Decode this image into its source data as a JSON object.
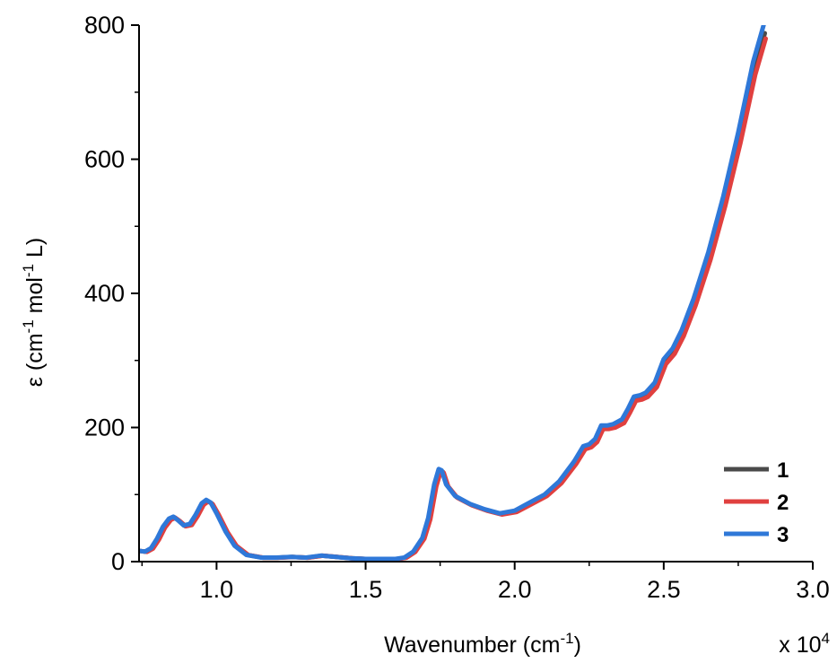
{
  "chart_data": {
    "type": "line",
    "xlabel": {
      "base": "Wavenumber (cm",
      "sup": "-1",
      "tail": ")"
    },
    "ylabel": {
      "p1": "ε (cm",
      "s1": "-1",
      "p2": " mol",
      "s2": "-1",
      "p3": " L)"
    },
    "x_multiplier": "x 10",
    "x_multiplier_exp": "4",
    "xlim": [
      0.74,
      3.0
    ],
    "ylim": [
      0,
      800
    ],
    "x_ticks": [
      1.0,
      1.5,
      2.0,
      2.5,
      3.0
    ],
    "x_tick_labels": [
      "1.0",
      "1.5",
      "2.0",
      "2.5",
      "3.0"
    ],
    "y_ticks": [
      0,
      200,
      400,
      600,
      800
    ],
    "y_tick_labels": [
      "0",
      "200",
      "400",
      "600",
      "800"
    ],
    "legend_position": "bottom-right",
    "series": [
      {
        "name": "1",
        "color": "#4a4a4a",
        "x_offset": 0.004,
        "y_scale": 0.985
      },
      {
        "name": "2",
        "color": "#e0403f",
        "x_offset": 0.007,
        "y_scale": 0.975
      },
      {
        "name": "3",
        "color": "#2f78d8",
        "x_offset": 0.0,
        "y_scale": 1.0
      }
    ],
    "points": [
      [
        0.74,
        16
      ],
      [
        0.76,
        15
      ],
      [
        0.78,
        20
      ],
      [
        0.8,
        34
      ],
      [
        0.82,
        52
      ],
      [
        0.84,
        64
      ],
      [
        0.855,
        67
      ],
      [
        0.87,
        62
      ],
      [
        0.89,
        54
      ],
      [
        0.91,
        56
      ],
      [
        0.93,
        70
      ],
      [
        0.95,
        87
      ],
      [
        0.965,
        92
      ],
      [
        0.98,
        88
      ],
      [
        1.0,
        72
      ],
      [
        1.03,
        45
      ],
      [
        1.06,
        24
      ],
      [
        1.1,
        10
      ],
      [
        1.15,
        6
      ],
      [
        1.2,
        6
      ],
      [
        1.25,
        7
      ],
      [
        1.3,
        6
      ],
      [
        1.35,
        9
      ],
      [
        1.4,
        7
      ],
      [
        1.45,
        5
      ],
      [
        1.5,
        4
      ],
      [
        1.55,
        4
      ],
      [
        1.6,
        4
      ],
      [
        1.63,
        6
      ],
      [
        1.66,
        15
      ],
      [
        1.69,
        35
      ],
      [
        1.71,
        65
      ],
      [
        1.73,
        115
      ],
      [
        1.745,
        138
      ],
      [
        1.755,
        136
      ],
      [
        1.77,
        115
      ],
      [
        1.8,
        98
      ],
      [
        1.85,
        86
      ],
      [
        1.9,
        78
      ],
      [
        1.95,
        72
      ],
      [
        2.0,
        76
      ],
      [
        2.05,
        88
      ],
      [
        2.1,
        100
      ],
      [
        2.15,
        120
      ],
      [
        2.2,
        150
      ],
      [
        2.23,
        172
      ],
      [
        2.25,
        175
      ],
      [
        2.27,
        183
      ],
      [
        2.29,
        203
      ],
      [
        2.31,
        203
      ],
      [
        2.33,
        205
      ],
      [
        2.36,
        212
      ],
      [
        2.38,
        228
      ],
      [
        2.4,
        246
      ],
      [
        2.42,
        248
      ],
      [
        2.44,
        252
      ],
      [
        2.47,
        267
      ],
      [
        2.5,
        302
      ],
      [
        2.53,
        318
      ],
      [
        2.56,
        345
      ],
      [
        2.6,
        392
      ],
      [
        2.65,
        462
      ],
      [
        2.7,
        545
      ],
      [
        2.75,
        640
      ],
      [
        2.8,
        745
      ],
      [
        2.835,
        800
      ]
    ]
  }
}
